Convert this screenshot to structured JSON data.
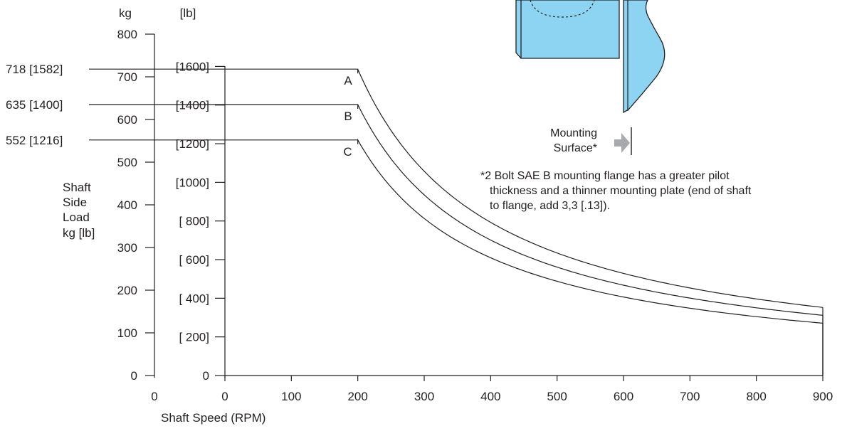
{
  "chart_data": {
    "type": "line",
    "x": [
      0,
      900
    ],
    "xlabel": "Shaft Speed (RPM)",
    "xlim": [
      0,
      900
    ],
    "x_ticks": [
      "0",
      "100",
      "200",
      "300",
      "400",
      "500",
      "600",
      "700",
      "800",
      "900"
    ],
    "ylabel_lines": [
      "Shaft",
      "Side",
      "Load",
      "kg [lb]"
    ],
    "kg_axis": {
      "unit_label": "kg",
      "origin_label": "0",
      "ylim": [
        0,
        800
      ],
      "ticks": [
        "0",
        "100",
        "200",
        "300",
        "400",
        "500",
        "600",
        "700",
        "800"
      ]
    },
    "lb_axis": {
      "unit_label": "[lb]",
      "ylim": [
        0,
        1764
      ],
      "ticks": [
        "0",
        "[  200]",
        "[  400]",
        "[  600]",
        "[  800]",
        "[1000]",
        "[1200]",
        "[1400]",
        "[1600]"
      ]
    },
    "series": [
      {
        "name": "A",
        "ref_label": "718 [1582]",
        "value_kg": 718,
        "knee_rpm": 200,
        "points": [
          [
            0,
            718
          ],
          [
            200,
            718
          ],
          [
            300,
            479
          ],
          [
            400,
            359
          ],
          [
            500,
            287
          ],
          [
            600,
            239
          ],
          [
            700,
            205
          ],
          [
            800,
            180
          ],
          [
            900,
            160
          ]
        ]
      },
      {
        "name": "B",
        "ref_label": "635 [1400]",
        "value_kg": 635,
        "knee_rpm": 200,
        "points": [
          [
            0,
            635
          ],
          [
            200,
            635
          ],
          [
            300,
            423
          ],
          [
            400,
            318
          ],
          [
            500,
            254
          ],
          [
            600,
            212
          ],
          [
            700,
            181
          ],
          [
            800,
            159
          ],
          [
            900,
            141
          ]
        ]
      },
      {
        "name": "C",
        "ref_label": "552 [1216]",
        "value_kg": 552,
        "knee_rpm": 200,
        "points": [
          [
            0,
            552
          ],
          [
            200,
            552
          ],
          [
            300,
            368
          ],
          [
            400,
            276
          ],
          [
            500,
            221
          ],
          [
            600,
            184
          ],
          [
            700,
            158
          ],
          [
            800,
            138
          ],
          [
            900,
            123
          ]
        ]
      }
    ],
    "grid": false
  },
  "diagram": {
    "mounting_label_line1": "Mounting",
    "mounting_label_line2": "Surface*",
    "fill_color": "#8dd4f2",
    "arrow_color": "#a7a9ac"
  },
  "footnote": {
    "line1": "*2 Bolt SAE B mounting flange has a greater pilot",
    "line2": "thickness and a thinner mounting plate (end of shaft",
    "line3": "to flange, add 3,3 [.13])."
  }
}
